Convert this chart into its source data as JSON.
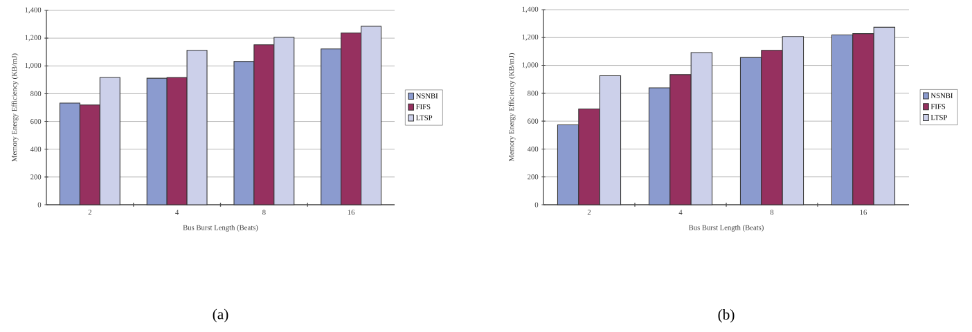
{
  "chart_data": [
    {
      "type": "bar",
      "categories": [
        "2",
        "4",
        "8",
        "16"
      ],
      "series": [
        {
          "name": "NSNBI",
          "color": "#8b9bcf",
          "values": [
            732,
            911,
            1032,
            1122
          ]
        },
        {
          "name": "FIFS",
          "color": "#96305f",
          "values": [
            719,
            917,
            1152,
            1237
          ]
        },
        {
          "name": "LTSP",
          "color": "#ccd0ea",
          "values": [
            917,
            1112,
            1206,
            1285
          ]
        }
      ],
      "ylim": [
        0,
        1400
      ],
      "yticks": [
        0,
        200,
        400,
        600,
        800,
        {
          "value": 1000,
          "label": "1,000"
        },
        {
          "value": 1200,
          "label": "1,200"
        },
        {
          "value": 1400,
          "label": "1,400"
        }
      ],
      "xlabel": "Bus Burst Length (Beats)",
      "ylabel": "Memory Energy Efficiency (KB/mJ)",
      "grid": "y",
      "legend": "right",
      "annotations": [
        "(a)"
      ]
    },
    {
      "type": "bar",
      "categories": [
        "2",
        "4",
        "8",
        "16"
      ],
      "series": [
        {
          "name": "NSNBI",
          "color": "#8b9bcf",
          "values": [
            573,
            839,
            1057,
            1219
          ]
        },
        {
          "name": "FIFS",
          "color": "#96305f",
          "values": [
            688,
            934,
            1108,
            1228
          ]
        },
        {
          "name": "LTSP",
          "color": "#ccd0ea",
          "values": [
            926,
            1092,
            1208,
            1274
          ]
        }
      ],
      "ylim": [
        0,
        1400
      ],
      "yticks": [
        0,
        200,
        400,
        600,
        800,
        {
          "value": 1000,
          "label": "1,000"
        },
        {
          "value": 1200,
          "label": "1,200"
        },
        {
          "value": 1400,
          "label": "1,400"
        }
      ],
      "xlabel": "Bus Burst Length (Beats)",
      "ylabel": "Memory Energy Efficiency (KB/mJ)",
      "grid": "y",
      "legend": "right",
      "annotations": [
        "(b)"
      ]
    }
  ]
}
